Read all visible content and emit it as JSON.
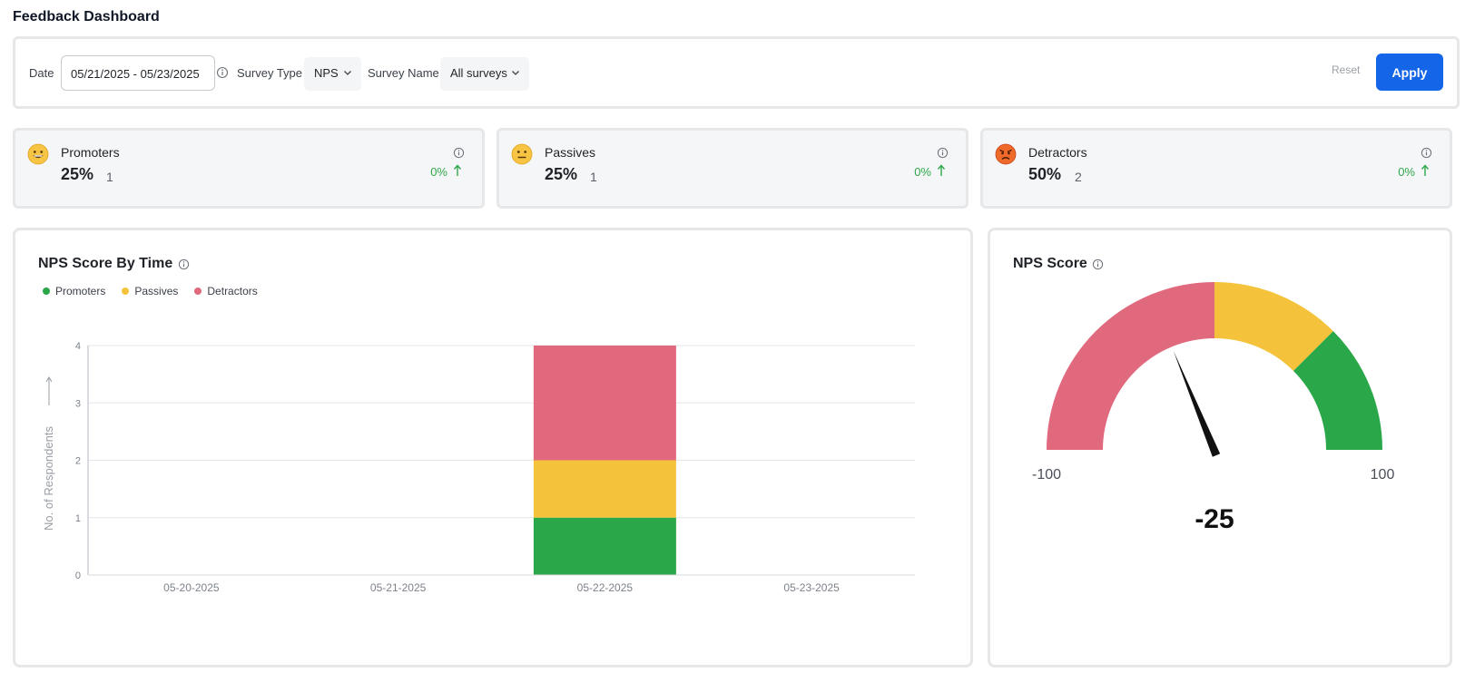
{
  "page": {
    "title": "Feedback Dashboard"
  },
  "filters": {
    "date_label": "Date",
    "date_value": "05/21/2025 - 05/23/2025",
    "survey_type_label": "Survey Type",
    "survey_type_value": "NPS",
    "survey_name_label": "Survey Name",
    "survey_name_value": "All surveys",
    "reset_label": "Reset",
    "apply_label": "Apply"
  },
  "stats": [
    {
      "name": "Promoters",
      "percent": "25%",
      "count": "1",
      "change": "0%",
      "emoji": "grinning-face-icon"
    },
    {
      "name": "Passives",
      "percent": "25%",
      "count": "1",
      "change": "0%",
      "emoji": "neutral-face-icon"
    },
    {
      "name": "Detractors",
      "percent": "50%",
      "count": "2",
      "change": "0%",
      "emoji": "angry-face-icon"
    }
  ],
  "colors": {
    "promoters": "#2aa748",
    "passives": "#f5c33b",
    "detractors": "#e0697d",
    "accent": "#1565e8",
    "positive": "#2ea84a"
  },
  "chart_panel": {
    "title": "NPS Score By Time"
  },
  "chart_data": {
    "type": "bar",
    "stacked": true,
    "title": "NPS Score By Time",
    "xlabel": "",
    "ylabel": "No. of Respondents",
    "categories": [
      "05-20-2025",
      "05-21-2025",
      "05-22-2025",
      "05-23-2025"
    ],
    "series": [
      {
        "name": "Promoters",
        "values": [
          0,
          0,
          1,
          0
        ],
        "color": "#2aa748"
      },
      {
        "name": "Passives",
        "values": [
          0,
          0,
          1,
          0
        ],
        "color": "#f5c33b"
      },
      {
        "name": "Detractors",
        "values": [
          0,
          0,
          2,
          0
        ],
        "color": "#e0697d"
      }
    ],
    "ylim": [
      0,
      4
    ],
    "yticks": [
      0,
      1,
      2,
      3,
      4
    ],
    "grid": true,
    "legend_position": "top-left"
  },
  "gauge": {
    "title": "NPS Score",
    "value": -25,
    "value_label": "-25",
    "min": -100,
    "max": 100,
    "min_label": "-100",
    "max_label": "100",
    "bands": [
      {
        "from": -100,
        "to": 0,
        "color": "#e0697d"
      },
      {
        "from": 0,
        "to": 50,
        "color": "#f5c33b"
      },
      {
        "from": 50,
        "to": 100,
        "color": "#2aa748"
      }
    ]
  }
}
